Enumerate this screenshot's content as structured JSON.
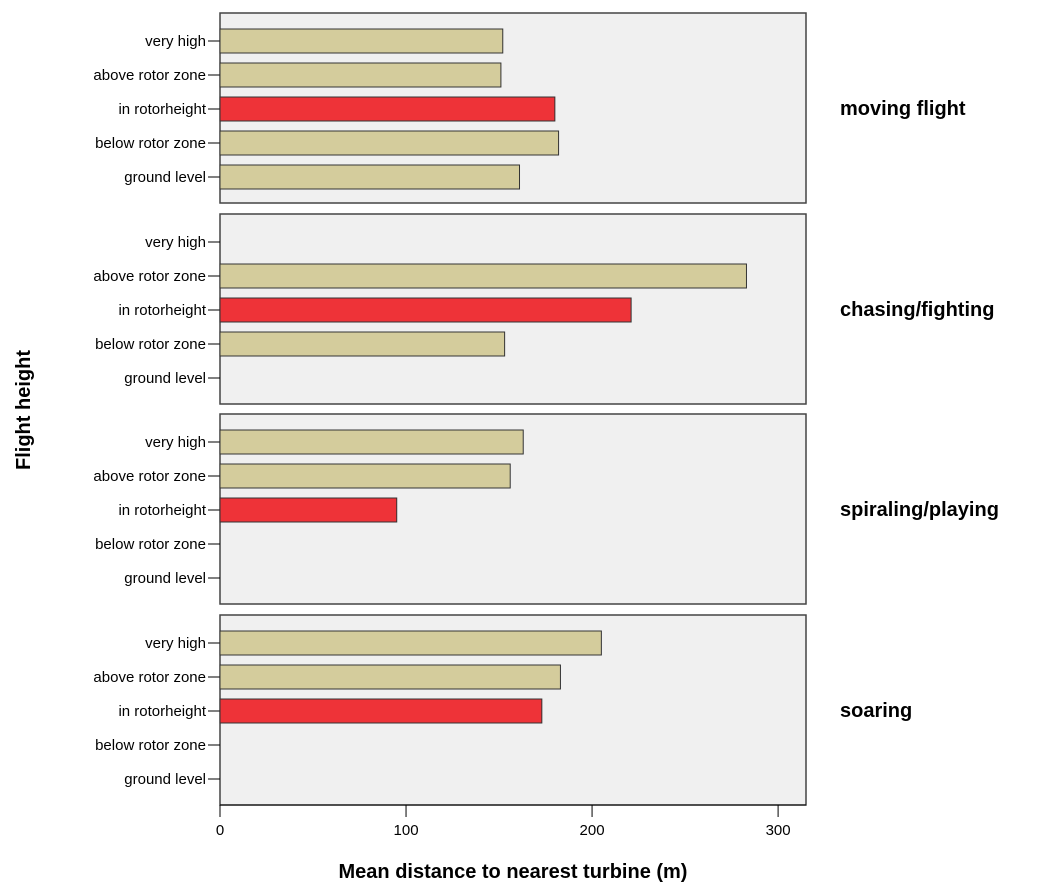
{
  "chart_data": {
    "type": "bar",
    "orientation": "horizontal",
    "xlabel": "Mean distance to nearest turbine (m)",
    "ylabel": "Flight height",
    "xlim": [
      0,
      315
    ],
    "xticks": [
      "0",
      "100",
      "200",
      "300"
    ],
    "xtick_values": [
      0,
      100,
      200,
      300
    ],
    "categories": [
      "very high",
      "above rotor zone",
      "in rotorheight",
      "below rotor zone",
      "ground level"
    ],
    "highlight_category": "in rotorheight",
    "colors": {
      "bar": "#d4cc9c",
      "highlight": "#ee3338",
      "panel": "#f0f0f0",
      "border": "#444444"
    },
    "grid": false,
    "panels": [
      {
        "label": "moving flight",
        "values": [
          152,
          151,
          180,
          182,
          161
        ]
      },
      {
        "label": "chasing/fighting",
        "values": [
          null,
          283,
          221,
          153,
          null
        ]
      },
      {
        "label": "spiraling/playing",
        "values": [
          163,
          156,
          95,
          null,
          null
        ]
      },
      {
        "label": "soaring",
        "values": [
          205,
          183,
          173,
          null,
          null
        ]
      }
    ]
  }
}
